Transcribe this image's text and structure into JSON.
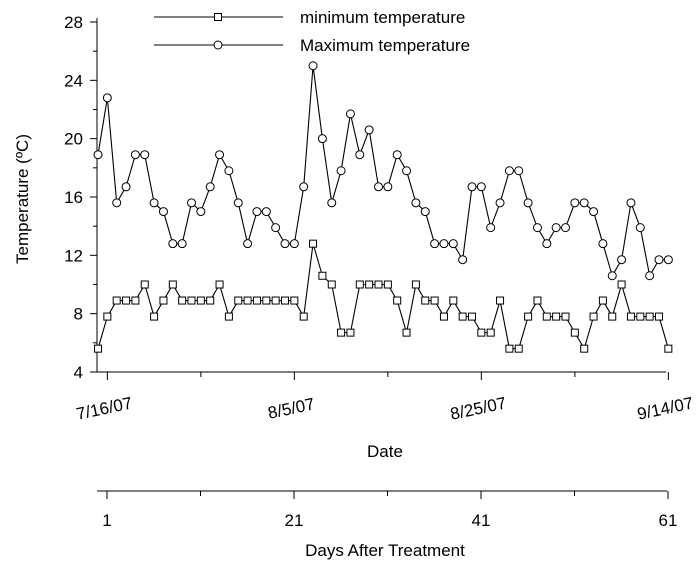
{
  "chart_data": {
    "type": "line",
    "x_axis": {
      "label": "Date",
      "tick_labels": [
        "7/16/07",
        "8/5/07",
        "8/25/07",
        "9/14/07"
      ]
    },
    "x2_axis": {
      "label": "Days After Treatment",
      "tick_labels": [
        "1",
        "21",
        "41",
        "61"
      ]
    },
    "y_axis": {
      "label": "Temperature (ºC)",
      "range": [
        4,
        28
      ],
      "ticks": [
        "4",
        "8",
        "12",
        "16",
        "20",
        "24",
        "28"
      ]
    },
    "days": [
      0,
      1,
      2,
      3,
      4,
      5,
      6,
      7,
      8,
      9,
      10,
      11,
      12,
      13,
      14,
      15,
      16,
      17,
      18,
      19,
      20,
      21,
      22,
      23,
      24,
      25,
      26,
      27,
      28,
      29,
      30,
      31,
      32,
      33,
      34,
      35,
      36,
      37,
      38,
      39,
      40,
      41,
      42,
      43,
      44,
      45,
      46,
      47,
      48,
      49,
      50,
      51,
      52,
      53,
      54,
      55,
      56,
      57,
      58,
      59,
      60,
      61
    ],
    "series": [
      {
        "name": "minimum temperature",
        "marker": "square",
        "values": [
          5.6,
          7.8,
          8.9,
          8.9,
          8.9,
          10.0,
          7.8,
          8.9,
          10.0,
          8.9,
          8.9,
          8.9,
          8.9,
          10.0,
          7.8,
          8.9,
          8.9,
          8.9,
          8.9,
          8.9,
          8.9,
          8.9,
          7.8,
          12.8,
          10.6,
          10.0,
          6.7,
          6.7,
          10.0,
          10.0,
          10.0,
          10.0,
          8.9,
          6.7,
          10.0,
          8.9,
          8.9,
          7.8,
          8.9,
          7.8,
          7.8,
          6.7,
          6.7,
          8.9,
          5.6,
          5.6,
          7.8,
          8.9,
          7.8,
          7.8,
          7.8,
          6.7,
          5.6,
          7.8,
          8.9,
          7.8,
          10.0,
          7.8,
          7.8,
          7.8,
          7.8,
          5.6
        ]
      },
      {
        "name": "Maximum temperature",
        "marker": "circle",
        "values": [
          18.9,
          22.8,
          15.6,
          16.7,
          18.9,
          18.9,
          15.6,
          15.0,
          12.8,
          12.8,
          15.6,
          15.0,
          16.7,
          18.9,
          17.8,
          15.6,
          12.8,
          15.0,
          15.0,
          13.9,
          12.8,
          12.8,
          16.7,
          25.0,
          20.0,
          15.6,
          17.8,
          21.7,
          18.9,
          20.6,
          16.7,
          16.7,
          18.9,
          17.8,
          15.6,
          15.0,
          12.8,
          12.8,
          12.8,
          11.7,
          16.7,
          16.7,
          13.9,
          15.6,
          17.8,
          17.8,
          15.6,
          13.9,
          12.8,
          13.9,
          13.9,
          15.6,
          15.6,
          15.0,
          12.8,
          10.6,
          11.7,
          15.6,
          13.9,
          10.6,
          11.7,
          11.7
        ]
      }
    ]
  }
}
